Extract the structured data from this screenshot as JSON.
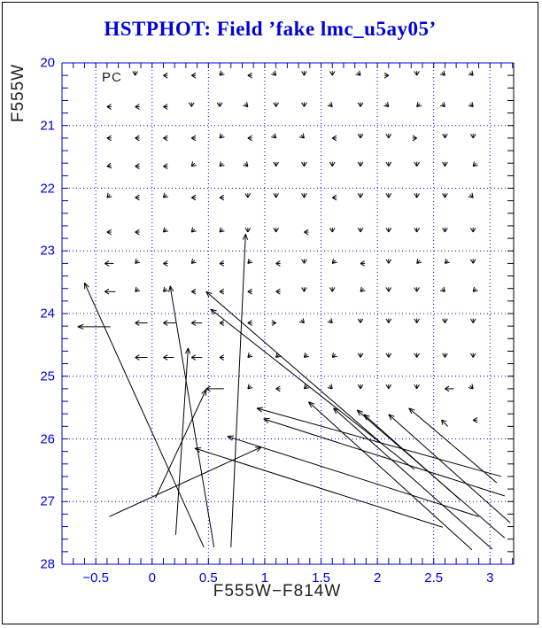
{
  "window": {
    "background": "#ffffff",
    "frame_color": "#000000"
  },
  "title": {
    "text": "HSTPHOT: Field ’fake lmc_u5ay05’",
    "color": "#0000dd"
  },
  "panel_label": "PC",
  "chart_data": {
    "type": "quiver",
    "title": "HSTPHOT: Field ’fake lmc_u5ay05’",
    "xlabel": "F555W−F814W",
    "ylabel": "F555W",
    "xlim": [
      -0.8,
      3.21
    ],
    "ylim": [
      28,
      20
    ],
    "x_ticks": [
      {
        "v": -0.5,
        "label": "−0.5"
      },
      {
        "v": 0,
        "label": "0"
      },
      {
        "v": 0.5,
        "label": "0.5"
      },
      {
        "v": 1,
        "label": "1"
      },
      {
        "v": 1.5,
        "label": "1.5"
      },
      {
        "v": 2,
        "label": "2"
      },
      {
        "v": 2.5,
        "label": "2.5"
      },
      {
        "v": 3,
        "label": "3"
      }
    ],
    "y_ticks": [
      {
        "v": 20,
        "label": "20"
      },
      {
        "v": 21,
        "label": "21"
      },
      {
        "v": 22,
        "label": "22"
      },
      {
        "v": 23,
        "label": "23"
      },
      {
        "v": 24,
        "label": "24"
      },
      {
        "v": 25,
        "label": "25"
      },
      {
        "v": 26,
        "label": "26"
      },
      {
        "v": 27,
        "label": "27"
      },
      {
        "v": 28,
        "label": "28"
      }
    ],
    "x_minor_step": 0.1,
    "y_minor_step": 0.2,
    "grid": {
      "on": true,
      "style": "dotted",
      "color": "#0000cc"
    },
    "axis_color_main": "#0000cc",
    "axis_color_right": "#000000",
    "vector_color": "#000000",
    "small_vectors": [
      [
        -0.15,
        20.2,
        270
      ],
      [
        0.1,
        20.2,
        180
      ],
      [
        0.35,
        20.2,
        180
      ],
      [
        0.6,
        20.2,
        225
      ],
      [
        0.85,
        20.2,
        180
      ],
      [
        1.1,
        20.2,
        315
      ],
      [
        1.35,
        20.2,
        270
      ],
      [
        1.6,
        20.2,
        270
      ],
      [
        1.85,
        20.2,
        315
      ],
      [
        2.1,
        20.2,
        0
      ],
      [
        2.35,
        20.2,
        270
      ],
      [
        2.6,
        20.2,
        315
      ],
      [
        2.85,
        20.2,
        315
      ],
      [
        -0.4,
        20.7,
        180
      ],
      [
        -0.15,
        20.7,
        180
      ],
      [
        0.1,
        20.7,
        180
      ],
      [
        0.35,
        20.7,
        270
      ],
      [
        0.6,
        20.7,
        270
      ],
      [
        0.85,
        20.7,
        315
      ],
      [
        1.1,
        20.7,
        270
      ],
      [
        1.35,
        20.7,
        270
      ],
      [
        1.6,
        20.7,
        315
      ],
      [
        1.85,
        20.7,
        270
      ],
      [
        2.1,
        20.7,
        315
      ],
      [
        2.35,
        20.7,
        225
      ],
      [
        2.6,
        20.7,
        315
      ],
      [
        2.85,
        20.7,
        315
      ],
      [
        -0.4,
        21.2,
        180
      ],
      [
        -0.15,
        21.2,
        180
      ],
      [
        0.1,
        21.2,
        180
      ],
      [
        0.35,
        21.2,
        180
      ],
      [
        0.6,
        21.2,
        225
      ],
      [
        0.85,
        21.2,
        180
      ],
      [
        1.1,
        21.2,
        315
      ],
      [
        1.35,
        21.2,
        315
      ],
      [
        1.6,
        21.2,
        180
      ],
      [
        1.85,
        21.2,
        270
      ],
      [
        2.1,
        21.2,
        270
      ],
      [
        2.35,
        21.2,
        0
      ],
      [
        2.6,
        21.2,
        270
      ],
      [
        2.85,
        21.2,
        270
      ],
      [
        -0.4,
        21.65,
        190
      ],
      [
        -0.15,
        21.65,
        180
      ],
      [
        0.1,
        21.65,
        180
      ],
      [
        0.35,
        21.65,
        225
      ],
      [
        0.6,
        21.65,
        225
      ],
      [
        0.85,
        21.65,
        315
      ],
      [
        1.1,
        21.65,
        270
      ],
      [
        1.35,
        21.65,
        270
      ],
      [
        1.6,
        21.65,
        270
      ],
      [
        1.85,
        21.65,
        270
      ],
      [
        2.1,
        21.65,
        270
      ],
      [
        2.35,
        21.65,
        270
      ],
      [
        2.6,
        21.65,
        270
      ],
      [
        2.85,
        21.65,
        225
      ],
      [
        -0.4,
        22.15,
        225
      ],
      [
        -0.15,
        22.15,
        180
      ],
      [
        0.1,
        22.15,
        225
      ],
      [
        0.35,
        22.15,
        180
      ],
      [
        0.6,
        22.15,
        180
      ],
      [
        0.85,
        22.15,
        270
      ],
      [
        1.1,
        22.15,
        270
      ],
      [
        1.35,
        22.15,
        270
      ],
      [
        1.6,
        22.15,
        180
      ],
      [
        1.85,
        22.15,
        270
      ],
      [
        2.1,
        22.15,
        270
      ],
      [
        2.35,
        22.15,
        270
      ],
      [
        2.6,
        22.15,
        270
      ],
      [
        2.85,
        22.15,
        315
      ],
      [
        -0.4,
        22.7,
        180
      ],
      [
        -0.15,
        22.7,
        180
      ],
      [
        0.1,
        22.7,
        225
      ],
      [
        0.35,
        22.7,
        225
      ],
      [
        0.6,
        22.7,
        225
      ],
      [
        0.85,
        22.7,
        270
      ],
      [
        1.1,
        22.7,
        270
      ],
      [
        1.35,
        22.7,
        180
      ],
      [
        1.6,
        22.7,
        270
      ],
      [
        1.85,
        22.7,
        270
      ],
      [
        2.1,
        22.7,
        270
      ],
      [
        2.35,
        22.7,
        270
      ],
      [
        2.6,
        22.7,
        270
      ],
      [
        2.85,
        22.7,
        270
      ],
      [
        -0.42,
        23.2,
        180,
        10
      ],
      [
        -0.15,
        23.2,
        225
      ],
      [
        0.1,
        23.2,
        180
      ],
      [
        0.35,
        23.2,
        225
      ],
      [
        0.6,
        23.2,
        180
      ],
      [
        0.85,
        23.2,
        225
      ],
      [
        1.1,
        23.2,
        180
      ],
      [
        1.35,
        23.2,
        270
      ],
      [
        1.6,
        23.2,
        225
      ],
      [
        1.85,
        23.2,
        180
      ],
      [
        2.1,
        23.2,
        270
      ],
      [
        2.35,
        23.2,
        225
      ],
      [
        2.6,
        23.2,
        225
      ],
      [
        2.85,
        23.2,
        270
      ],
      [
        -0.42,
        23.65,
        180,
        12
      ],
      [
        -0.15,
        23.65,
        225
      ],
      [
        0.1,
        23.65,
        225
      ],
      [
        0.35,
        23.65,
        180
      ],
      [
        0.6,
        23.65,
        180
      ],
      [
        0.85,
        23.65,
        180
      ],
      [
        1.1,
        23.65,
        180
      ],
      [
        1.35,
        23.65,
        270
      ],
      [
        1.6,
        23.65,
        270
      ],
      [
        1.85,
        23.65,
        225
      ],
      [
        2.1,
        23.65,
        270
      ],
      [
        2.35,
        23.65,
        270
      ],
      [
        2.6,
        23.65,
        315
      ],
      [
        2.85,
        23.65,
        225
      ],
      [
        -0.15,
        24.15,
        180,
        14
      ],
      [
        0.1,
        24.15,
        180,
        14
      ],
      [
        0.35,
        24.15,
        180,
        12
      ],
      [
        0.6,
        24.15,
        180
      ],
      [
        0.85,
        24.15,
        180
      ],
      [
        1.1,
        24.15,
        0
      ],
      [
        1.35,
        24.15,
        315
      ],
      [
        1.6,
        24.15,
        315
      ],
      [
        1.85,
        24.15,
        270
      ],
      [
        2.1,
        24.15,
        270
      ],
      [
        2.35,
        24.15,
        270
      ],
      [
        2.6,
        24.15,
        270
      ],
      [
        2.85,
        24.15,
        270
      ],
      [
        -0.15,
        24.7,
        180,
        14
      ],
      [
        0.1,
        24.7,
        180,
        12
      ],
      [
        0.35,
        24.7,
        180,
        12
      ],
      [
        0.6,
        24.7,
        180
      ],
      [
        0.85,
        24.7,
        225
      ],
      [
        1.1,
        24.7,
        225
      ],
      [
        1.35,
        24.7,
        225
      ],
      [
        1.6,
        24.7,
        225
      ],
      [
        1.85,
        24.7,
        270
      ],
      [
        2.1,
        24.7,
        270
      ],
      [
        2.35,
        24.7,
        270
      ],
      [
        2.6,
        24.7,
        270
      ],
      [
        2.85,
        24.7,
        270
      ],
      [
        0.48,
        25.2,
        180,
        20
      ],
      [
        0.85,
        25.2,
        225
      ],
      [
        1.1,
        25.2,
        180
      ],
      [
        1.35,
        25.2,
        225
      ],
      [
        1.6,
        25.2,
        315
      ],
      [
        1.85,
        25.2,
        270
      ],
      [
        2.1,
        25.2,
        270
      ],
      [
        2.35,
        25.2,
        270
      ],
      [
        2.6,
        25.2,
        180,
        10
      ],
      [
        2.85,
        25.2,
        315
      ],
      [
        2.57,
        25.7,
        135,
        10
      ],
      [
        2.85,
        25.7,
        180
      ]
    ],
    "long_arrows": [
      [
        0.7,
        27.73,
        0.83,
        22.73
      ],
      [
        0.21,
        27.53,
        0.32,
        24.55
      ],
      [
        0.46,
        27.73,
        -0.6,
        23.51
      ],
      [
        0.55,
        27.73,
        0.16,
        23.56
      ],
      [
        0.03,
        26.94,
        0.48,
        25.21
      ],
      [
        -0.38,
        27.24,
        0.97,
        26.13
      ],
      [
        -0.37,
        24.21,
        -0.66,
        24.21
      ],
      [
        2.84,
        27.77,
        1.39,
        25.41
      ],
      [
        3.02,
        27.76,
        1.61,
        25.51
      ],
      [
        3.13,
        27.58,
        1.82,
        25.54
      ],
      [
        2.74,
        26.98,
        1.88,
        25.61
      ],
      [
        3.18,
        27.34,
        2.1,
        25.61
      ],
      [
        3.06,
        26.7,
        2.28,
        25.51
      ],
      [
        2.03,
        26.06,
        0.48,
        23.65
      ],
      [
        2.33,
        26.49,
        0.52,
        23.93
      ],
      [
        3.1,
        26.6,
        0.93,
        25.51
      ],
      [
        3.13,
        26.91,
        0.99,
        25.68
      ],
      [
        2.9,
        27.24,
        0.67,
        25.96
      ],
      [
        2.58,
        27.41,
        0.38,
        26.15
      ]
    ]
  }
}
